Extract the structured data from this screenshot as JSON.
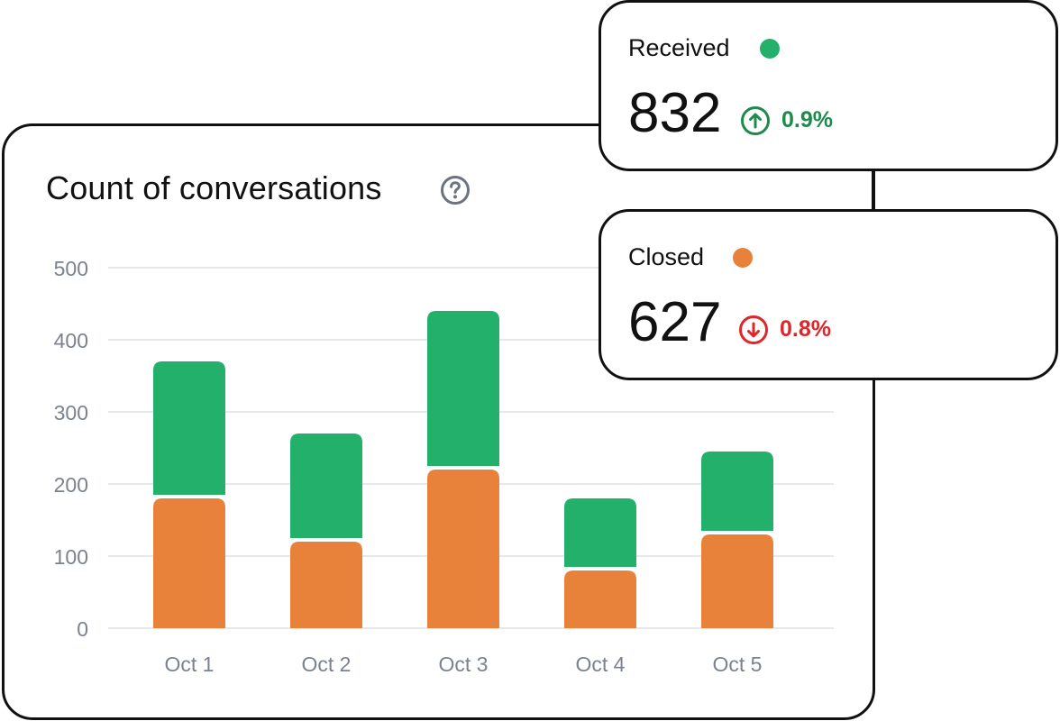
{
  "chart_data": {
    "type": "bar",
    "stacked": true,
    "title": "Count of conversations",
    "categories": [
      "Oct 1",
      "Oct 2",
      "Oct 3",
      "Oct 4",
      "Oct 5"
    ],
    "series": [
      {
        "name": "Closed",
        "color": "#E8823A",
        "values": [
          180,
          120,
          220,
          80,
          130
        ]
      },
      {
        "name": "Received",
        "color": "#22B06B",
        "values": [
          190,
          150,
          220,
          100,
          115
        ]
      }
    ],
    "ylim": [
      0,
      500
    ],
    "yticks": [
      0,
      100,
      200,
      300,
      400,
      500
    ],
    "grid": true,
    "xlabel": "",
    "ylabel": ""
  },
  "icons": {
    "help": "question-circle-icon",
    "up": "arrow-up-circle-icon",
    "down": "arrow-down-circle-icon"
  },
  "colors": {
    "received": "#22B06B",
    "closed": "#E8823A",
    "trend_up": "#1E8A4C",
    "trend_down": "#E0262A",
    "gridline": "#E6E8EB",
    "tick": "#7A8290"
  },
  "stats": {
    "received": {
      "label": "Received",
      "value": "832",
      "change": "0.9%",
      "direction": "up"
    },
    "closed": {
      "label": "Closed",
      "value": "627",
      "change": "0.8%",
      "direction": "down"
    }
  }
}
